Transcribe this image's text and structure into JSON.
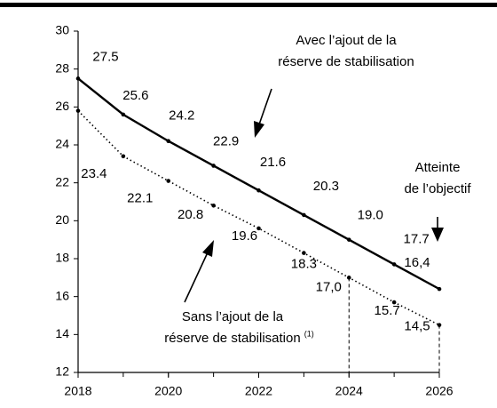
{
  "chart_data": {
    "type": "line",
    "x": [
      2018,
      2019,
      2020,
      2021,
      2022,
      2023,
      2024,
      2025,
      2026
    ],
    "series": [
      {
        "color": "#000000",
        "style": "solid",
        "values": [
          27.5,
          25.6,
          24.2,
          22.9,
          21.6,
          20.3,
          19.0,
          17.7,
          16.4
        ],
        "value_labels": [
          "27.5",
          "25.6",
          "24.2",
          "22.9",
          "21.6",
          "20.3",
          "19.0",
          "17.7",
          "16,4"
        ]
      },
      {
        "color": "#000000",
        "style": "dotted",
        "values": [
          25.8,
          23.4,
          22.1,
          20.8,
          19.6,
          18.3,
          17.0,
          15.7,
          14.5
        ],
        "value_labels": [
          null,
          "23.4",
          "22.1",
          "20.8",
          "19.6",
          "18.3",
          "17,0",
          "15.7",
          "14,5"
        ]
      }
    ],
    "xlim": [
      2018,
      2026
    ],
    "xticks": [
      2018,
      2020,
      2022,
      2024,
      2026
    ],
    "ylim": [
      12,
      30
    ],
    "yticks": [
      12,
      14,
      16,
      18,
      20,
      22,
      24,
      26,
      28,
      30
    ],
    "annotations": [
      {
        "lines": [
          "Avec l’ajout de la",
          "réserve de stabilisation"
        ]
      },
      {
        "lines": [
          "Sans l’ajout de la",
          "réserve de stabilisation"
        ],
        "note": "(1)"
      },
      {
        "lines": [
          "Atteinte",
          "de l’objectif"
        ]
      }
    ]
  }
}
